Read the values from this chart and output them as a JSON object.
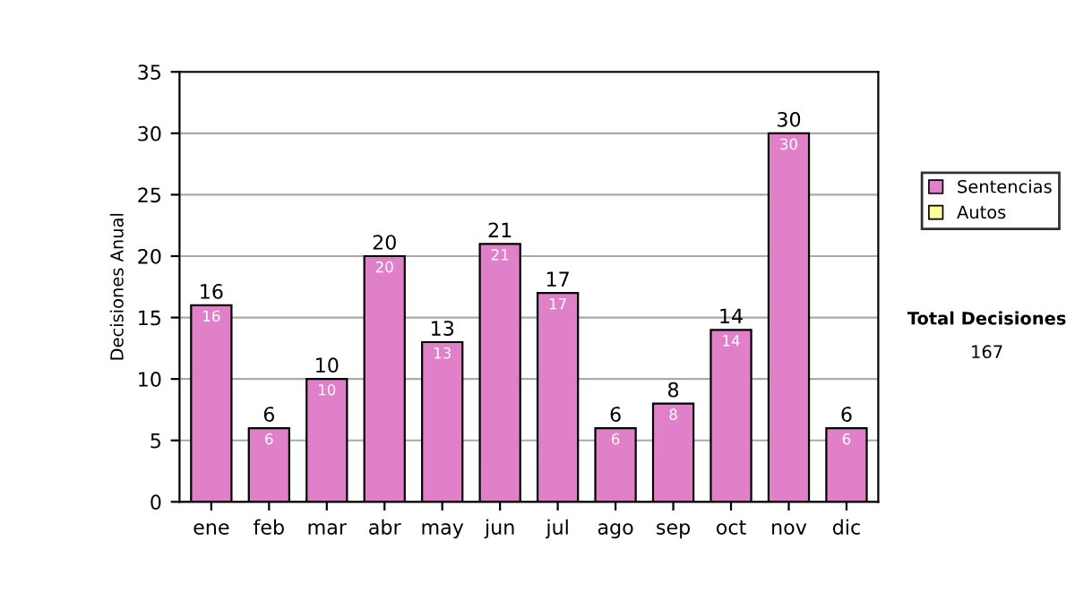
{
  "chart_data": {
    "type": "bar",
    "stacked": true,
    "ylabel": "Decisiones Anual",
    "categories": [
      "ene",
      "feb",
      "mar",
      "abr",
      "may",
      "jun",
      "jul",
      "ago",
      "sep",
      "oct",
      "nov",
      "dic"
    ],
    "series": [
      {
        "name": "Sentencias",
        "color": "#e080c8",
        "values": [
          16,
          6,
          10,
          20,
          13,
          21,
          17,
          6,
          8,
          14,
          30,
          6
        ],
        "value_labels": [
          "16",
          "6",
          "10",
          "20",
          "13",
          "21",
          "17",
          "6",
          "8",
          "14",
          "30",
          "6"
        ]
      },
      {
        "name": "Autos",
        "color": "#ffff99",
        "values": [
          0,
          0,
          0,
          0,
          0,
          0,
          0,
          0,
          0,
          0,
          0,
          0
        ]
      }
    ],
    "totals": [
      "16",
      "6",
      "10",
      "20",
      "13",
      "21",
      "17",
      "6",
      "8",
      "14",
      "30",
      "6"
    ],
    "ylim": [
      0,
      35
    ],
    "yticks": [
      0,
      5,
      10,
      15,
      20,
      25,
      30,
      35
    ],
    "grid": "y",
    "legend": "right",
    "annotations": [
      "Total Decisiones",
      "167"
    ]
  }
}
